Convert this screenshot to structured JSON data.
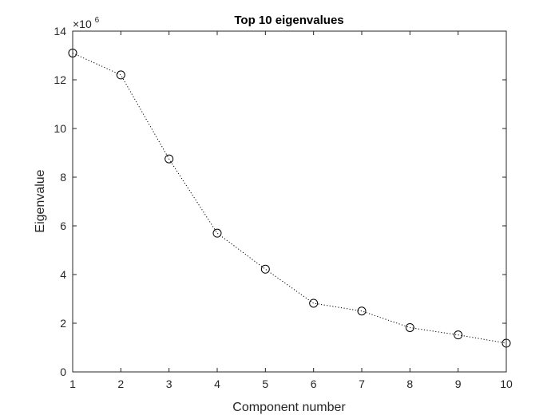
{
  "chart_data": {
    "type": "line",
    "title": "Top 10 eigenvalues",
    "xlabel": "Component number",
    "ylabel": "Eigenvalue",
    "y_multiplier": {
      "base": "×10",
      "exponent": "6"
    },
    "xlim": [
      1,
      10
    ],
    "ylim": [
      0,
      14
    ],
    "x_ticks": [
      1,
      2,
      3,
      4,
      5,
      6,
      7,
      8,
      9,
      10
    ],
    "y_ticks": [
      0,
      2,
      4,
      6,
      8,
      10,
      12,
      14
    ],
    "grid": false,
    "line_style": "dotted",
    "marker": "circle",
    "colors": {
      "line": "#000000",
      "axes": "#262626"
    },
    "series": [
      {
        "x": [
          1,
          2,
          3,
          4,
          5,
          6,
          7,
          8,
          9,
          10
        ],
        "y": [
          13.1,
          12.2,
          8.75,
          5.7,
          4.22,
          2.82,
          2.5,
          1.82,
          1.52,
          1.18
        ]
      }
    ]
  }
}
